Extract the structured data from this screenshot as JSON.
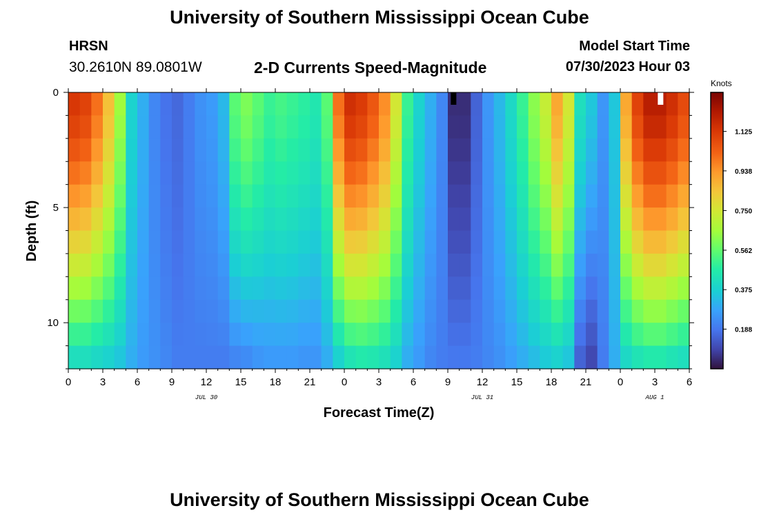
{
  "header": {
    "title": "University of Southern Mississippi Ocean Cube",
    "station_code": "HRSN",
    "station_coords": "30.2610N  89.0801W",
    "chart_title": "2-D Currents Speed-Magnitude",
    "model_label": "Model Start Time",
    "model_time": "07/30/2023 Hour 03"
  },
  "footer": {
    "title": "University of Southern Mississippi Ocean Cube"
  },
  "chart_data": {
    "type": "heatmap",
    "title": "2-D Currents Speed-Magnitude",
    "xlabel": "Forecast Time(Z)",
    "ylabel": "Depth (ft)",
    "x_range_hours": [
      0,
      54
    ],
    "y_range_ft": [
      0,
      12
    ],
    "x_tick_labels": [
      "0",
      "3",
      "6",
      "9",
      "12",
      "15",
      "18",
      "21",
      "0",
      "3",
      "6",
      "9",
      "12",
      "15",
      "18",
      "21",
      "0",
      "3",
      "6"
    ],
    "y_tick_values": [
      0,
      5,
      10
    ],
    "y_tick_labels": [
      "0",
      "5",
      "10"
    ],
    "date_labels": [
      {
        "label": "JUL 30",
        "hour": 12
      },
      {
        "label": "JUL 31",
        "hour": 36
      },
      {
        "label": "AUG 1",
        "hour": 51
      }
    ],
    "colorbar": {
      "unit": "Knots",
      "min": 0,
      "max": 1.31,
      "tick_values": [
        0.188,
        0.375,
        0.562,
        0.75,
        0.938,
        1.125
      ],
      "tick_labels": [
        "0.188",
        "0.375",
        "0.562",
        "0.750",
        "0.938",
        "1.125"
      ]
    },
    "depth_levels": 12,
    "hours": [
      0,
      1,
      2,
      3,
      4,
      5,
      6,
      7,
      8,
      9,
      10,
      11,
      12,
      13,
      14,
      15,
      16,
      17,
      18,
      19,
      20,
      21,
      22,
      23,
      24,
      25,
      26,
      27,
      28,
      29,
      30,
      31,
      32,
      33,
      34,
      35,
      36,
      37,
      38,
      39,
      40,
      41,
      42,
      43,
      44,
      45,
      46,
      47,
      48,
      49,
      50,
      51,
      52,
      53
    ],
    "surface_speed_knots": [
      1.13,
      1.1,
      1.0,
      0.85,
      0.65,
      0.38,
      0.3,
      0.22,
      0.18,
      0.16,
      0.2,
      0.24,
      0.26,
      0.32,
      0.55,
      0.6,
      0.55,
      0.5,
      0.52,
      0.5,
      0.48,
      0.45,
      0.55,
      1.0,
      1.15,
      1.12,
      1.05,
      0.95,
      0.75,
      0.5,
      0.38,
      0.3,
      0.22,
      0.05,
      0.05,
      0.15,
      0.25,
      0.32,
      0.4,
      0.5,
      0.62,
      0.72,
      0.9,
      0.75,
      0.42,
      0.35,
      0.25,
      0.35,
      0.9,
      1.1,
      1.2,
      1.2,
      1.15,
      1.08
    ],
    "bottom_speed_knots": [
      0.42,
      0.42,
      0.4,
      0.38,
      0.35,
      0.3,
      0.26,
      0.24,
      0.22,
      0.2,
      0.2,
      0.2,
      0.2,
      0.2,
      0.22,
      0.23,
      0.25,
      0.26,
      0.26,
      0.26,
      0.25,
      0.25,
      0.3,
      0.38,
      0.44,
      0.46,
      0.45,
      0.43,
      0.38,
      0.3,
      0.26,
      0.22,
      0.2,
      0.19,
      0.19,
      0.2,
      0.22,
      0.24,
      0.27,
      0.3,
      0.33,
      0.36,
      0.38,
      0.35,
      0.15,
      0.1,
      0.2,
      0.3,
      0.4,
      0.44,
      0.46,
      0.46,
      0.44,
      0.42
    ],
    "missing_data_markers": [
      {
        "hour": 33,
        "color": "#000000"
      },
      {
        "hour": 51,
        "color": "#ffffff"
      }
    ]
  }
}
